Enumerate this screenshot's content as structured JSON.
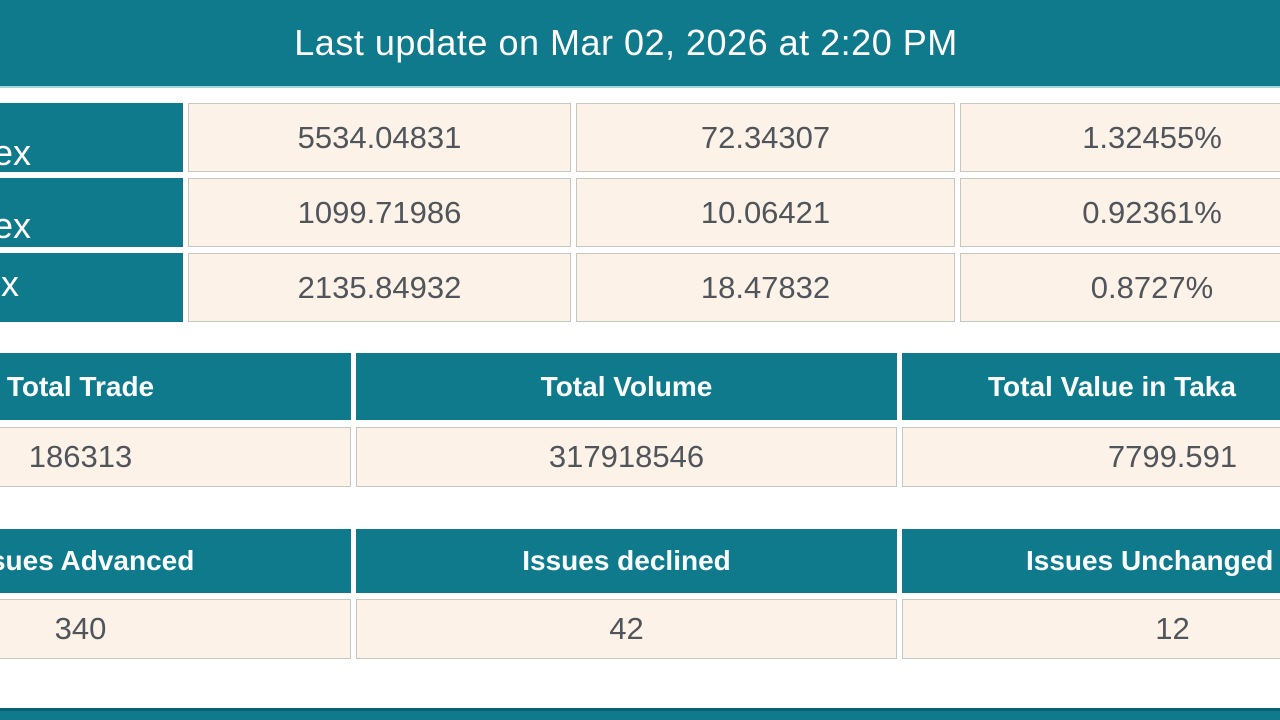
{
  "colors": {
    "teal": "#0f7a8c",
    "cream_cell": "#fcf2e7",
    "value_text": "#50555b",
    "cell_border": "#c5c8c1",
    "banner_text": "#ffffff"
  },
  "banner": {
    "text": "Last update on Mar 02, 2026 at 2:20 PM"
  },
  "index_table": {
    "rows": [
      {
        "label_visible": "ex",
        "value": "5534.04831",
        "change": "72.34307",
        "change_pct": "1.32455%"
      },
      {
        "label_visible": "ex",
        "value": "1099.71986",
        "change": "10.06421",
        "change_pct": "0.92361%"
      },
      {
        "label_visible": "x",
        "value": "2135.84932",
        "change": "18.47832",
        "change_pct": "0.8727%"
      }
    ]
  },
  "totals_table": {
    "headers": [
      "Total Trade",
      "Total Volume",
      "Total Value in Taka"
    ],
    "values": [
      "186313",
      "317918546",
      "7799.591"
    ]
  },
  "issues_table": {
    "headers": [
      "Issues Advanced",
      "Issues declined",
      "Issues Unchanged"
    ],
    "values": [
      "340",
      "42",
      "12"
    ]
  }
}
